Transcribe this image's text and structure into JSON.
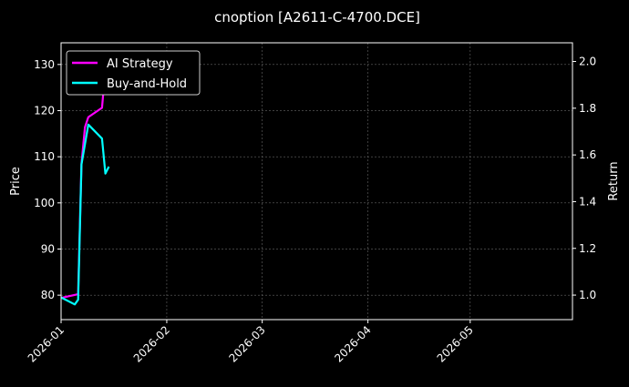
{
  "chart_data": {
    "type": "line",
    "title": "cnoption [A2611-C-4700.DCE]",
    "ylabel": "Price",
    "y2label": "Return",
    "xlim": [
      "2026-01-01",
      "2026-05-31"
    ],
    "ylim": [
      74.7,
      134.7
    ],
    "y2lim": [
      0.895,
      2.08
    ],
    "xticks": [
      "2026-01",
      "2026-02",
      "2026-03",
      "2026-04",
      "2026-05"
    ],
    "yticks": [
      80,
      90,
      100,
      110,
      120,
      130
    ],
    "y2ticks": [
      "1.0",
      "1.2",
      "1.4",
      "1.6",
      "1.8",
      "2.0"
    ],
    "grid": true,
    "legend": "top-left",
    "series": [
      {
        "name": "AI Strategy",
        "axis": "left",
        "color": "#ff00ff",
        "x": [
          "2026-01-01",
          "2026-01-06",
          "2026-01-07",
          "2026-01-08",
          "2026-01-09",
          "2026-01-13",
          "2026-01-14"
        ],
        "y": [
          79.4,
          80.2,
          108.5,
          116.4,
          118.6,
          120.6,
          129.0
        ]
      },
      {
        "name": "Buy-and-Hold",
        "axis": "right",
        "color": "#00ffff",
        "x": [
          "2026-01-01",
          "2026-01-05",
          "2026-01-06",
          "2026-01-07",
          "2026-01-09",
          "2026-01-13",
          "2026-01-14",
          "2026-01-15"
        ],
        "y": [
          0.99,
          0.96,
          0.98,
          1.56,
          1.73,
          1.67,
          1.52,
          1.55
        ]
      }
    ]
  }
}
